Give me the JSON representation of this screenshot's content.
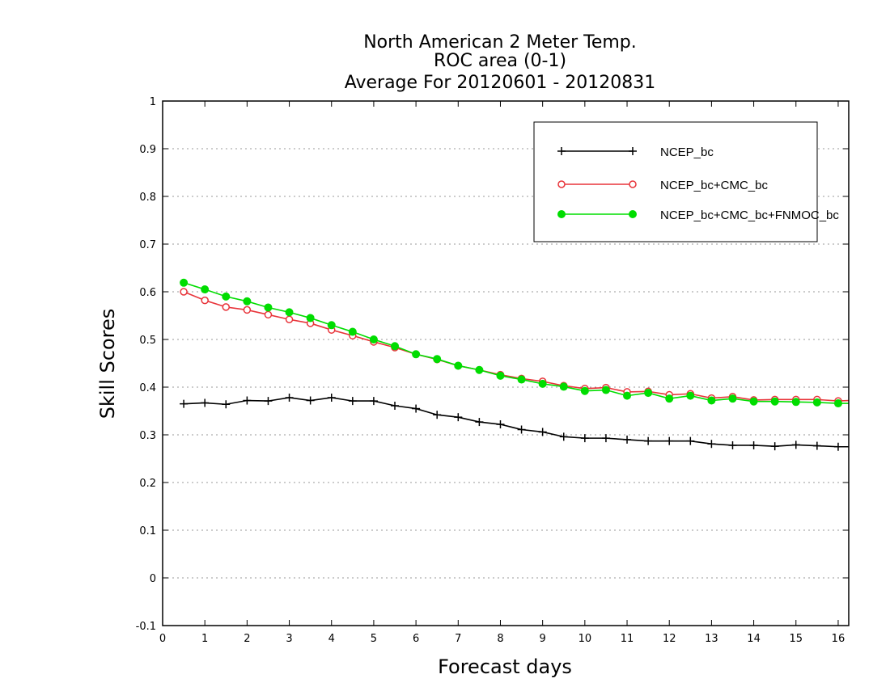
{
  "chart_data": {
    "type": "line",
    "title_lines": [
      "North American 2 Meter Temp.",
      "ROC area (0-1)",
      "Average For 20120601 - 20120831"
    ],
    "xlabel": "Forecast days",
    "ylabel": "Skill Scores",
    "xlim": [
      0,
      16.25
    ],
    "ylim": [
      -0.1,
      1
    ],
    "x_ticks": [
      0,
      1,
      2,
      3,
      4,
      5,
      6,
      7,
      8,
      9,
      10,
      11,
      12,
      13,
      14,
      15,
      16
    ],
    "y_ticks": [
      -0.1,
      0,
      0.1,
      0.2,
      0.3,
      0.4,
      0.5,
      0.6,
      0.7,
      0.8,
      0.9,
      1
    ],
    "y_tick_labels": [
      "-0.1",
      "0",
      "0.1",
      "0.2",
      "0.3",
      "0.4",
      "0.5",
      "0.6",
      "0.7",
      "0.8",
      "0.9",
      "1"
    ],
    "grid": "horizontal dotted",
    "legend_position": "top-right",
    "x": [
      0.5,
      1,
      1.5,
      2,
      2.5,
      3,
      3.5,
      4,
      4.5,
      5,
      5.5,
      6,
      6.5,
      7,
      7.5,
      8,
      8.5,
      9,
      9.5,
      10,
      10.5,
      11,
      11.5,
      12,
      12.5,
      13,
      13.5,
      14,
      14.5,
      15,
      15.5,
      16,
      16.25
    ],
    "series": [
      {
        "name": "NCEP_bc",
        "color": "#000000",
        "marker": "plus",
        "values": [
          0.365,
          0.367,
          0.364,
          0.372,
          0.371,
          0.378,
          0.372,
          0.378,
          0.371,
          0.371,
          0.361,
          0.355,
          0.342,
          0.337,
          0.327,
          0.322,
          0.311,
          0.306,
          0.296,
          0.293,
          0.293,
          0.29,
          0.287,
          0.287,
          0.287,
          0.281,
          0.278,
          0.278,
          0.276,
          0.279,
          0.277,
          0.275,
          0.275
        ]
      },
      {
        "name": "NCEP_bc+CMC_bc",
        "color": "#e8343a",
        "marker": "open-circle",
        "values": [
          0.6,
          0.582,
          0.568,
          0.562,
          0.552,
          0.542,
          0.534,
          0.52,
          0.508,
          0.495,
          0.483,
          0.469,
          0.458,
          0.445,
          0.436,
          0.426,
          0.418,
          0.412,
          0.403,
          0.397,
          0.399,
          0.39,
          0.391,
          0.384,
          0.386,
          0.377,
          0.38,
          0.373,
          0.374,
          0.374,
          0.374,
          0.371,
          0.372
        ]
      },
      {
        "name": "NCEP_bc+CMC_bc+FNMOC_bc",
        "color": "#00dd00",
        "marker": "filled-circle",
        "values": [
          0.619,
          0.605,
          0.59,
          0.58,
          0.567,
          0.557,
          0.545,
          0.53,
          0.516,
          0.5,
          0.486,
          0.469,
          0.459,
          0.445,
          0.436,
          0.424,
          0.416,
          0.407,
          0.401,
          0.392,
          0.394,
          0.382,
          0.388,
          0.376,
          0.382,
          0.372,
          0.376,
          0.37,
          0.37,
          0.369,
          0.368,
          0.366,
          0.366
        ]
      }
    ]
  }
}
